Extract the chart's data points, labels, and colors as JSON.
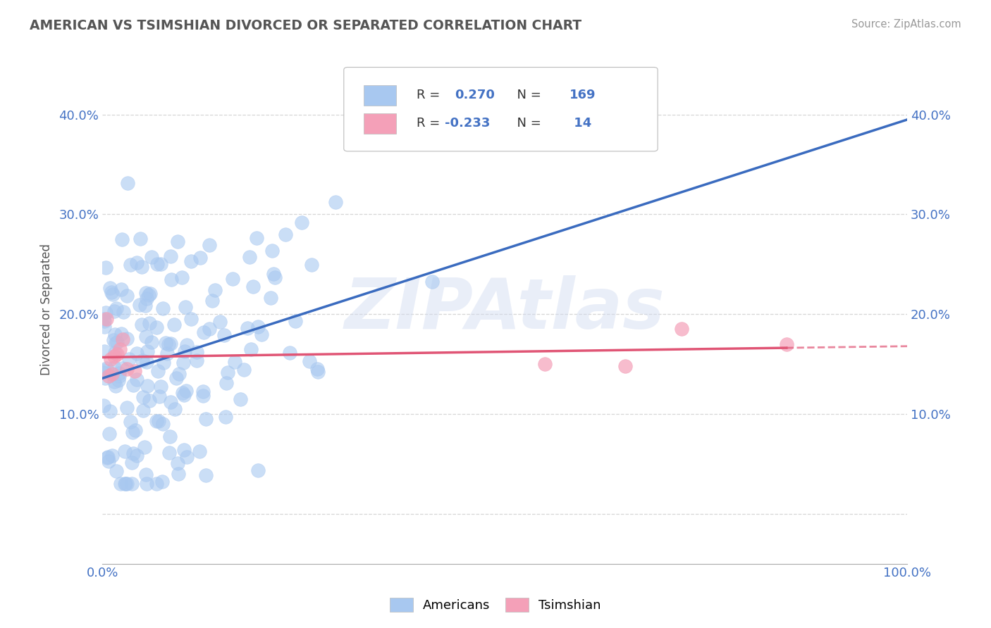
{
  "title": "AMERICAN VS TSIMSHIAN DIVORCED OR SEPARATED CORRELATION CHART",
  "source": "Source: ZipAtlas.com",
  "ylabel": "Divorced or Separated",
  "r_american": 0.27,
  "n_american": 169,
  "r_tsimshian": -0.233,
  "n_tsimshian": 14,
  "xlim": [
    0.0,
    1.0
  ],
  "ylim": [
    -0.05,
    0.46
  ],
  "yticks": [
    0.0,
    0.1,
    0.2,
    0.3,
    0.4
  ],
  "ytick_labels": [
    "",
    "10.0%",
    "20.0%",
    "30.0%",
    "40.0%"
  ],
  "xtick_labels": [
    "0.0%",
    "100.0%"
  ],
  "american_color": "#a8c8f0",
  "tsimshian_color": "#f4a0b8",
  "trend_american_color": "#3a6bbf",
  "trend_tsimshian_color": "#e05575",
  "background_color": "#ffffff",
  "grid_color": "#cccccc",
  "title_color": "#555555",
  "watermark_text": "ZIPAtlas"
}
